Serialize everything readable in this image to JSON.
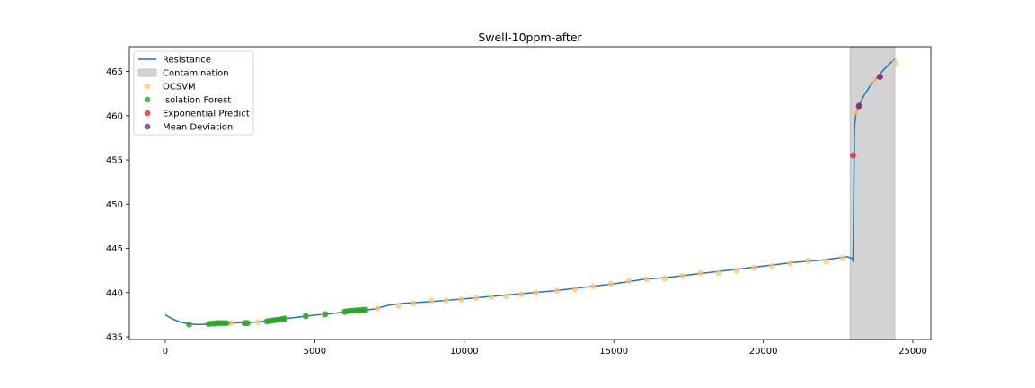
{
  "chart_data": {
    "type": "line",
    "title": "Swell-10ppm-after",
    "xlabel": "",
    "ylabel": "",
    "xlim": [
      -1200,
      25600
    ],
    "ylim": [
      434.7,
      467.8
    ],
    "xticks": [
      0,
      5000,
      10000,
      15000,
      20000,
      25000
    ],
    "yticks": [
      435,
      440,
      445,
      450,
      455,
      460,
      465
    ],
    "legend_position": "top-left",
    "grid": false,
    "colors": {
      "resistance": "#1f77b4",
      "contamination": "#d3d3d3",
      "ocsvm": "#ffc469",
      "isolation_forest": "#2ca02c",
      "exponential_predict": "#e0282b",
      "mean_deviation": "#7b2d8b"
    },
    "legend": [
      {
        "label": "Resistance",
        "kind": "line",
        "color": "#1f77b4"
      },
      {
        "label": "Contamination",
        "kind": "patch",
        "color": "#d3d3d3"
      },
      {
        "label": "OCSVM",
        "kind": "marker",
        "color": "#ffc469"
      },
      {
        "label": "Isolation Forest",
        "kind": "marker",
        "color": "#2ca02c"
      },
      {
        "label": "Exponential Predict",
        "kind": "marker",
        "color": "#e0282b"
      },
      {
        "label": "Mean Deviation",
        "kind": "marker",
        "color": "#7b2d8b"
      }
    ],
    "contamination_span": [
      22900,
      24400
    ],
    "series": [
      {
        "name": "Resistance",
        "x": [
          0,
          200,
          400,
          600,
          800,
          1000,
          1200,
          1500,
          2000,
          2500,
          3000,
          3500,
          4000,
          4500,
          5000,
          5500,
          6000,
          6500,
          7000,
          7500,
          8000,
          9000,
          10000,
          11000,
          12000,
          13000,
          14000,
          15000,
          16000,
          17000,
          18000,
          19000,
          20000,
          21000,
          22000,
          22800,
          22950,
          23000,
          23050,
          23100,
          23200,
          23400,
          23600,
          23800,
          24000,
          24200,
          24400
        ],
        "y": [
          437.5,
          437.1,
          436.8,
          436.6,
          436.45,
          436.4,
          436.4,
          436.45,
          436.55,
          436.6,
          436.65,
          436.85,
          437.05,
          437.25,
          437.45,
          437.6,
          437.8,
          437.95,
          438.15,
          438.6,
          438.8,
          439.0,
          439.3,
          439.6,
          439.9,
          440.2,
          440.6,
          441.0,
          441.5,
          441.8,
          442.2,
          442.6,
          443.0,
          443.4,
          443.7,
          444.05,
          443.9,
          443.6,
          458.7,
          460.3,
          461.2,
          462.5,
          463.5,
          464.3,
          465.1,
          465.8,
          466.4
        ]
      }
    ],
    "markers": [
      {
        "name": "OCSVM",
        "x": [
          1700,
          2200,
          2700,
          3100,
          4000,
          4700,
          5300,
          6000,
          6500,
          7100,
          7800,
          8300,
          8900,
          9400,
          9900,
          10400,
          10900,
          11400,
          11900,
          12400,
          13100,
          13700,
          14300,
          14900,
          15500,
          16100,
          16700,
          17300,
          17900,
          18500,
          19100,
          19700,
          20300,
          20900,
          21500,
          22100,
          22650,
          23100,
          23700,
          24400
        ],
        "y": [
          436.6,
          436.55,
          436.6,
          436.65,
          437.1,
          437.3,
          437.5,
          437.7,
          437.9,
          438.2,
          438.5,
          438.8,
          439.1,
          439.1,
          439.2,
          439.4,
          439.5,
          439.6,
          439.8,
          440.0,
          440.2,
          440.4,
          440.7,
          441.0,
          441.3,
          441.5,
          441.6,
          441.9,
          442.2,
          442.2,
          442.5,
          442.8,
          443.0,
          443.3,
          443.6,
          443.5,
          443.9,
          460.4,
          464.0,
          466.0
        ]
      },
      {
        "name": "Isolation Forest",
        "x": [
          800,
          1450,
          1550,
          1650,
          1750,
          1850,
          1950,
          2050,
          2650,
          2750,
          3400,
          3500,
          3600,
          3700,
          3800,
          3900,
          4000,
          4700,
          5350,
          6000,
          6100,
          6200,
          6300,
          6400,
          6500,
          6600,
          6700
        ],
        "y": [
          436.4,
          436.45,
          436.5,
          436.5,
          436.55,
          436.55,
          436.55,
          436.55,
          436.55,
          436.55,
          436.75,
          436.8,
          436.85,
          436.9,
          436.95,
          437.0,
          437.05,
          437.35,
          437.55,
          437.85,
          437.9,
          437.95,
          437.95,
          438.0,
          438.0,
          438.05,
          438.05
        ]
      },
      {
        "name": "Exponential Predict",
        "x": [
          23000,
          23200,
          23900
        ],
        "y": [
          455.5,
          461.1,
          464.4
        ]
      },
      {
        "name": "Mean Deviation",
        "x": [
          23200,
          23900
        ],
        "y": [
          461.1,
          464.4
        ]
      }
    ]
  }
}
